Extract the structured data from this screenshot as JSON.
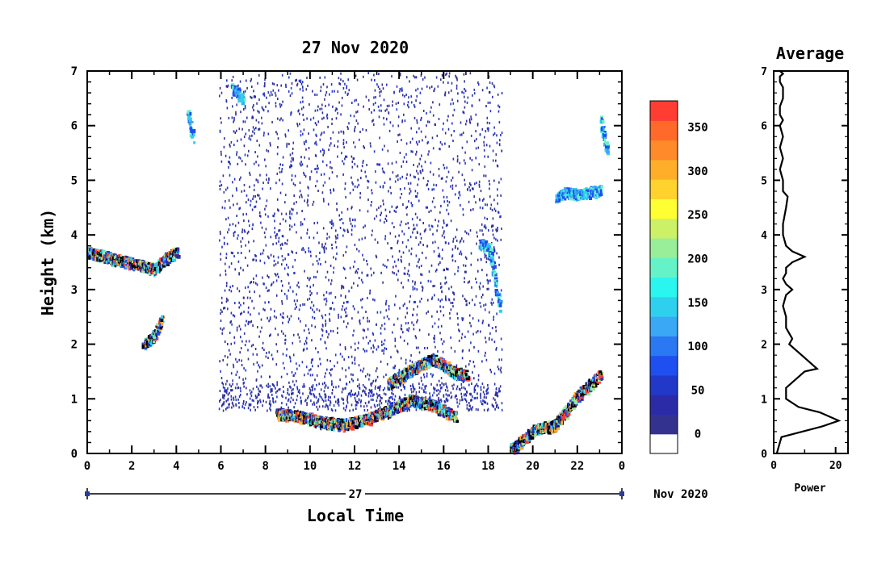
{
  "chart_data": [
    {
      "type": "heatmap",
      "title": "27 Nov 2020",
      "xlabel": "Local Time",
      "ylabel": "Height (km)",
      "x_ticks": [
        "0",
        "2",
        "4",
        "6",
        "8",
        "10",
        "12",
        "14",
        "16",
        "18",
        "20",
        "22",
        "0"
      ],
      "y_ticks": [
        "0",
        "1",
        "2",
        "3",
        "4",
        "5",
        "6",
        "7"
      ],
      "xlim": [
        0,
        24
      ],
      "ylim": [
        0,
        7
      ],
      "date_bar": {
        "day_label": "27",
        "month_year_label": "Nov 2020"
      },
      "colorbar": {
        "ticks": [
          "0",
          "50",
          "100",
          "150",
          "200",
          "250",
          "300",
          "350"
        ],
        "range": [
          0,
          380
        ],
        "colors": [
          "#ffffff",
          "#33338f",
          "#2b2ba8",
          "#2238c9",
          "#1f4ff0",
          "#2a78f2",
          "#3aa8f4",
          "#2ed0ee",
          "#2af5ef",
          "#66f2c8",
          "#99ee99",
          "#ccf066",
          "#ffff33",
          "#ffd22e",
          "#ffae2a",
          "#ff8a2a",
          "#ff6a2a",
          "#ff3d33"
        ]
      },
      "layers": [
        {
          "name": "Sparse noise echoes",
          "x_range": [
            5.9,
            18.6
          ],
          "y_range": [
            0.9,
            7.0
          ],
          "level": "low"
        },
        {
          "name": "Boundary layer echoes",
          "x": [
            8.5,
            9.5,
            10.5,
            11.5,
            12.5,
            13.5,
            14.5,
            15.5,
            16.5
          ],
          "y": [
            0.75,
            0.7,
            0.6,
            0.55,
            0.65,
            0.8,
            1.0,
            0.9,
            0.7
          ],
          "level": "high"
        },
        {
          "name": "Elevated layer (early)",
          "x": [
            0.0,
            0.5,
            1.0,
            1.5,
            3.0,
            3.5,
            4.0
          ],
          "y": [
            3.7,
            3.65,
            3.6,
            3.55,
            3.4,
            3.6,
            3.7
          ],
          "level": "high"
        },
        {
          "name": "Ascending layer",
          "x": [
            2.5,
            3.0,
            3.3
          ],
          "y": [
            2.0,
            2.2,
            2.45
          ],
          "level": "high"
        },
        {
          "name": "Rising afternoon layer",
          "x": [
            13.5,
            14.5,
            15.5,
            16.5,
            17.0
          ],
          "y": [
            1.3,
            1.55,
            1.75,
            1.5,
            1.45
          ],
          "level": "high"
        },
        {
          "name": "Elevated layer (evening)",
          "x": [
            17.6,
            18.0,
            18.5
          ],
          "y": [
            3.85,
            3.8,
            2.7
          ],
          "level": "medium"
        },
        {
          "name": "Evening low layer",
          "x": [
            19.0,
            19.5,
            20.0,
            21.0,
            22.0,
            23.0
          ],
          "y": [
            0.1,
            0.25,
            0.45,
            0.55,
            1.1,
            1.45
          ],
          "level": "high"
        },
        {
          "name": "Upper evening layer",
          "x": [
            21.0,
            21.5,
            22.0,
            23.0
          ],
          "y": [
            4.7,
            4.8,
            4.75,
            4.85
          ],
          "level": "medium"
        },
        {
          "name": "Upper cloud 4.6h",
          "x": [
            4.5,
            4.7
          ],
          "y": [
            6.3,
            5.8
          ],
          "level": "medium"
        },
        {
          "name": "Upper cloud 6.8h",
          "x": [
            6.5,
            7.0
          ],
          "y": [
            6.7,
            6.5
          ],
          "level": "medium"
        },
        {
          "name": "Upper cloud 23.2h",
          "x": [
            23.0,
            23.3
          ],
          "y": [
            6.1,
            5.6
          ],
          "level": "medium"
        }
      ]
    },
    {
      "type": "line",
      "title": "Average",
      "xlabel": "Power",
      "ylabel": "",
      "x_ticks": [
        "0",
        "20"
      ],
      "y_ticks": [
        "0",
        "1",
        "2",
        "3",
        "4",
        "5",
        "6",
        "7"
      ],
      "xlim": [
        0,
        24
      ],
      "ylim": [
        0,
        7
      ],
      "series": [
        {
          "x": [
            1.0,
            2.5,
            16.0,
            21.0,
            15.0,
            8.0,
            4.0,
            4.0,
            10.0,
            14.0,
            9.0,
            5.0,
            6.0,
            4.0,
            4.0,
            3.0,
            4.0,
            6.0,
            4.0,
            3.0,
            4.0,
            4.0,
            6.0,
            10.0,
            6.0,
            4.0,
            3.0,
            3.0,
            4.0,
            4.5,
            3.0,
            3.0,
            2.0,
            3.0,
            2.0,
            3.0,
            2.0,
            3.0,
            2.0,
            2.0,
            3.0,
            3.0,
            3.0,
            2.0,
            2.0,
            3.0,
            2.0,
            3.0
          ],
          "y": [
            0.0,
            0.3,
            0.5,
            0.6,
            0.75,
            0.85,
            1.0,
            1.2,
            1.5,
            1.55,
            1.8,
            2.0,
            2.1,
            2.3,
            2.5,
            2.7,
            2.9,
            3.0,
            3.1,
            3.2,
            3.3,
            3.4,
            3.5,
            3.6,
            3.7,
            3.8,
            4.0,
            4.2,
            4.5,
            4.7,
            4.8,
            5.0,
            5.2,
            5.4,
            5.6,
            5.8,
            6.0,
            6.1,
            6.2,
            6.35,
            6.5,
            6.6,
            6.7,
            6.8,
            6.9,
            6.95,
            7.0,
            7.0
          ]
        }
      ]
    }
  ]
}
